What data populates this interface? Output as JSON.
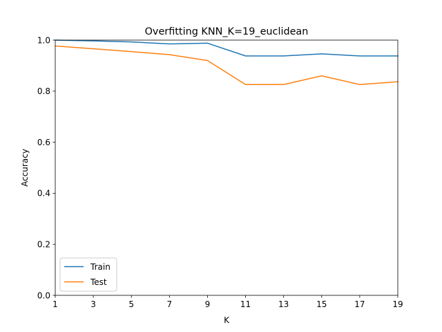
{
  "chart_data": {
    "type": "line",
    "title": "Overfitting KNN_K=19_euclidean",
    "xlabel": "K",
    "ylabel": "Accuracy",
    "x": [
      1,
      3,
      5,
      7,
      9,
      11,
      13,
      15,
      17,
      19
    ],
    "xlim": [
      1,
      19
    ],
    "ylim": [
      0,
      1
    ],
    "xticks": [
      "1",
      "3",
      "5",
      "7",
      "9",
      "11",
      "13",
      "15",
      "17",
      "19"
    ],
    "yticks": [
      "0.0",
      "0.2",
      "0.4",
      "0.6",
      "0.8",
      "1.0"
    ],
    "grid": false,
    "legend_position": "lower-left",
    "series": [
      {
        "name": "Train",
        "color": "#1f77b4",
        "values": [
          1.0,
          0.997,
          0.993,
          0.985,
          0.988,
          0.938,
          0.938,
          0.946,
          0.938,
          0.938
        ]
      },
      {
        "name": "Test",
        "color": "#ff7f0e",
        "values": [
          0.977,
          0.966,
          0.955,
          0.943,
          0.92,
          0.826,
          0.826,
          0.86,
          0.826,
          0.837
        ]
      }
    ]
  }
}
